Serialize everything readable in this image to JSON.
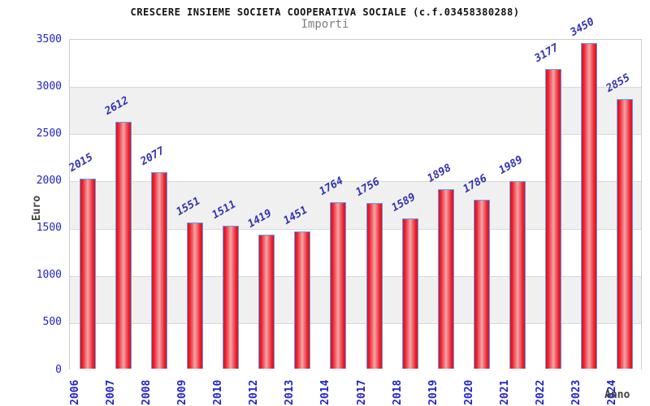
{
  "chart_data": {
    "type": "bar",
    "title": "CRESCERE INSIEME SOCIETA COOPERATIVA SOCIALE (c.f.03458380288)",
    "subtitle": "Importi",
    "xlabel": "Anno",
    "ylabel": "Euro",
    "categories": [
      "2006",
      "2007",
      "2008",
      "2009",
      "2010",
      "2012",
      "2013",
      "2014",
      "2017",
      "2018",
      "2019",
      "2020",
      "2021",
      "2022",
      "2023",
      "2024"
    ],
    "values": [
      2015,
      2612,
      2077,
      1551,
      1511,
      1419,
      1451,
      1764,
      1756,
      1589,
      1898,
      1786,
      1989,
      3177,
      3450,
      2855
    ],
    "ylim": [
      0,
      3500
    ],
    "yticks": [
      0,
      500,
      1000,
      1500,
      2000,
      2500,
      3000,
      3500
    ],
    "grid": true,
    "legend": "none",
    "band_pattern": "alternating horizontal bands, white and light gray",
    "value_labels_rotated_deg": -30,
    "x_labels_rotated_deg": -90,
    "colors": {
      "bar_edge": "#d9121f",
      "bar_mid": "#ee2130",
      "bar_center_highlight": "#f2a6a6",
      "bar_border": "#5aa0f2",
      "tick_label_blue": "#2222cc",
      "value_label_blue": "#3232b4",
      "band_gray": "#f0f0f1",
      "gridline": "#d8d8d8",
      "plot_border": "#cccccc",
      "axis_title_gray": "#404040",
      "title_black": "#111111",
      "subtitle_gray": "#7f7f7f"
    }
  }
}
